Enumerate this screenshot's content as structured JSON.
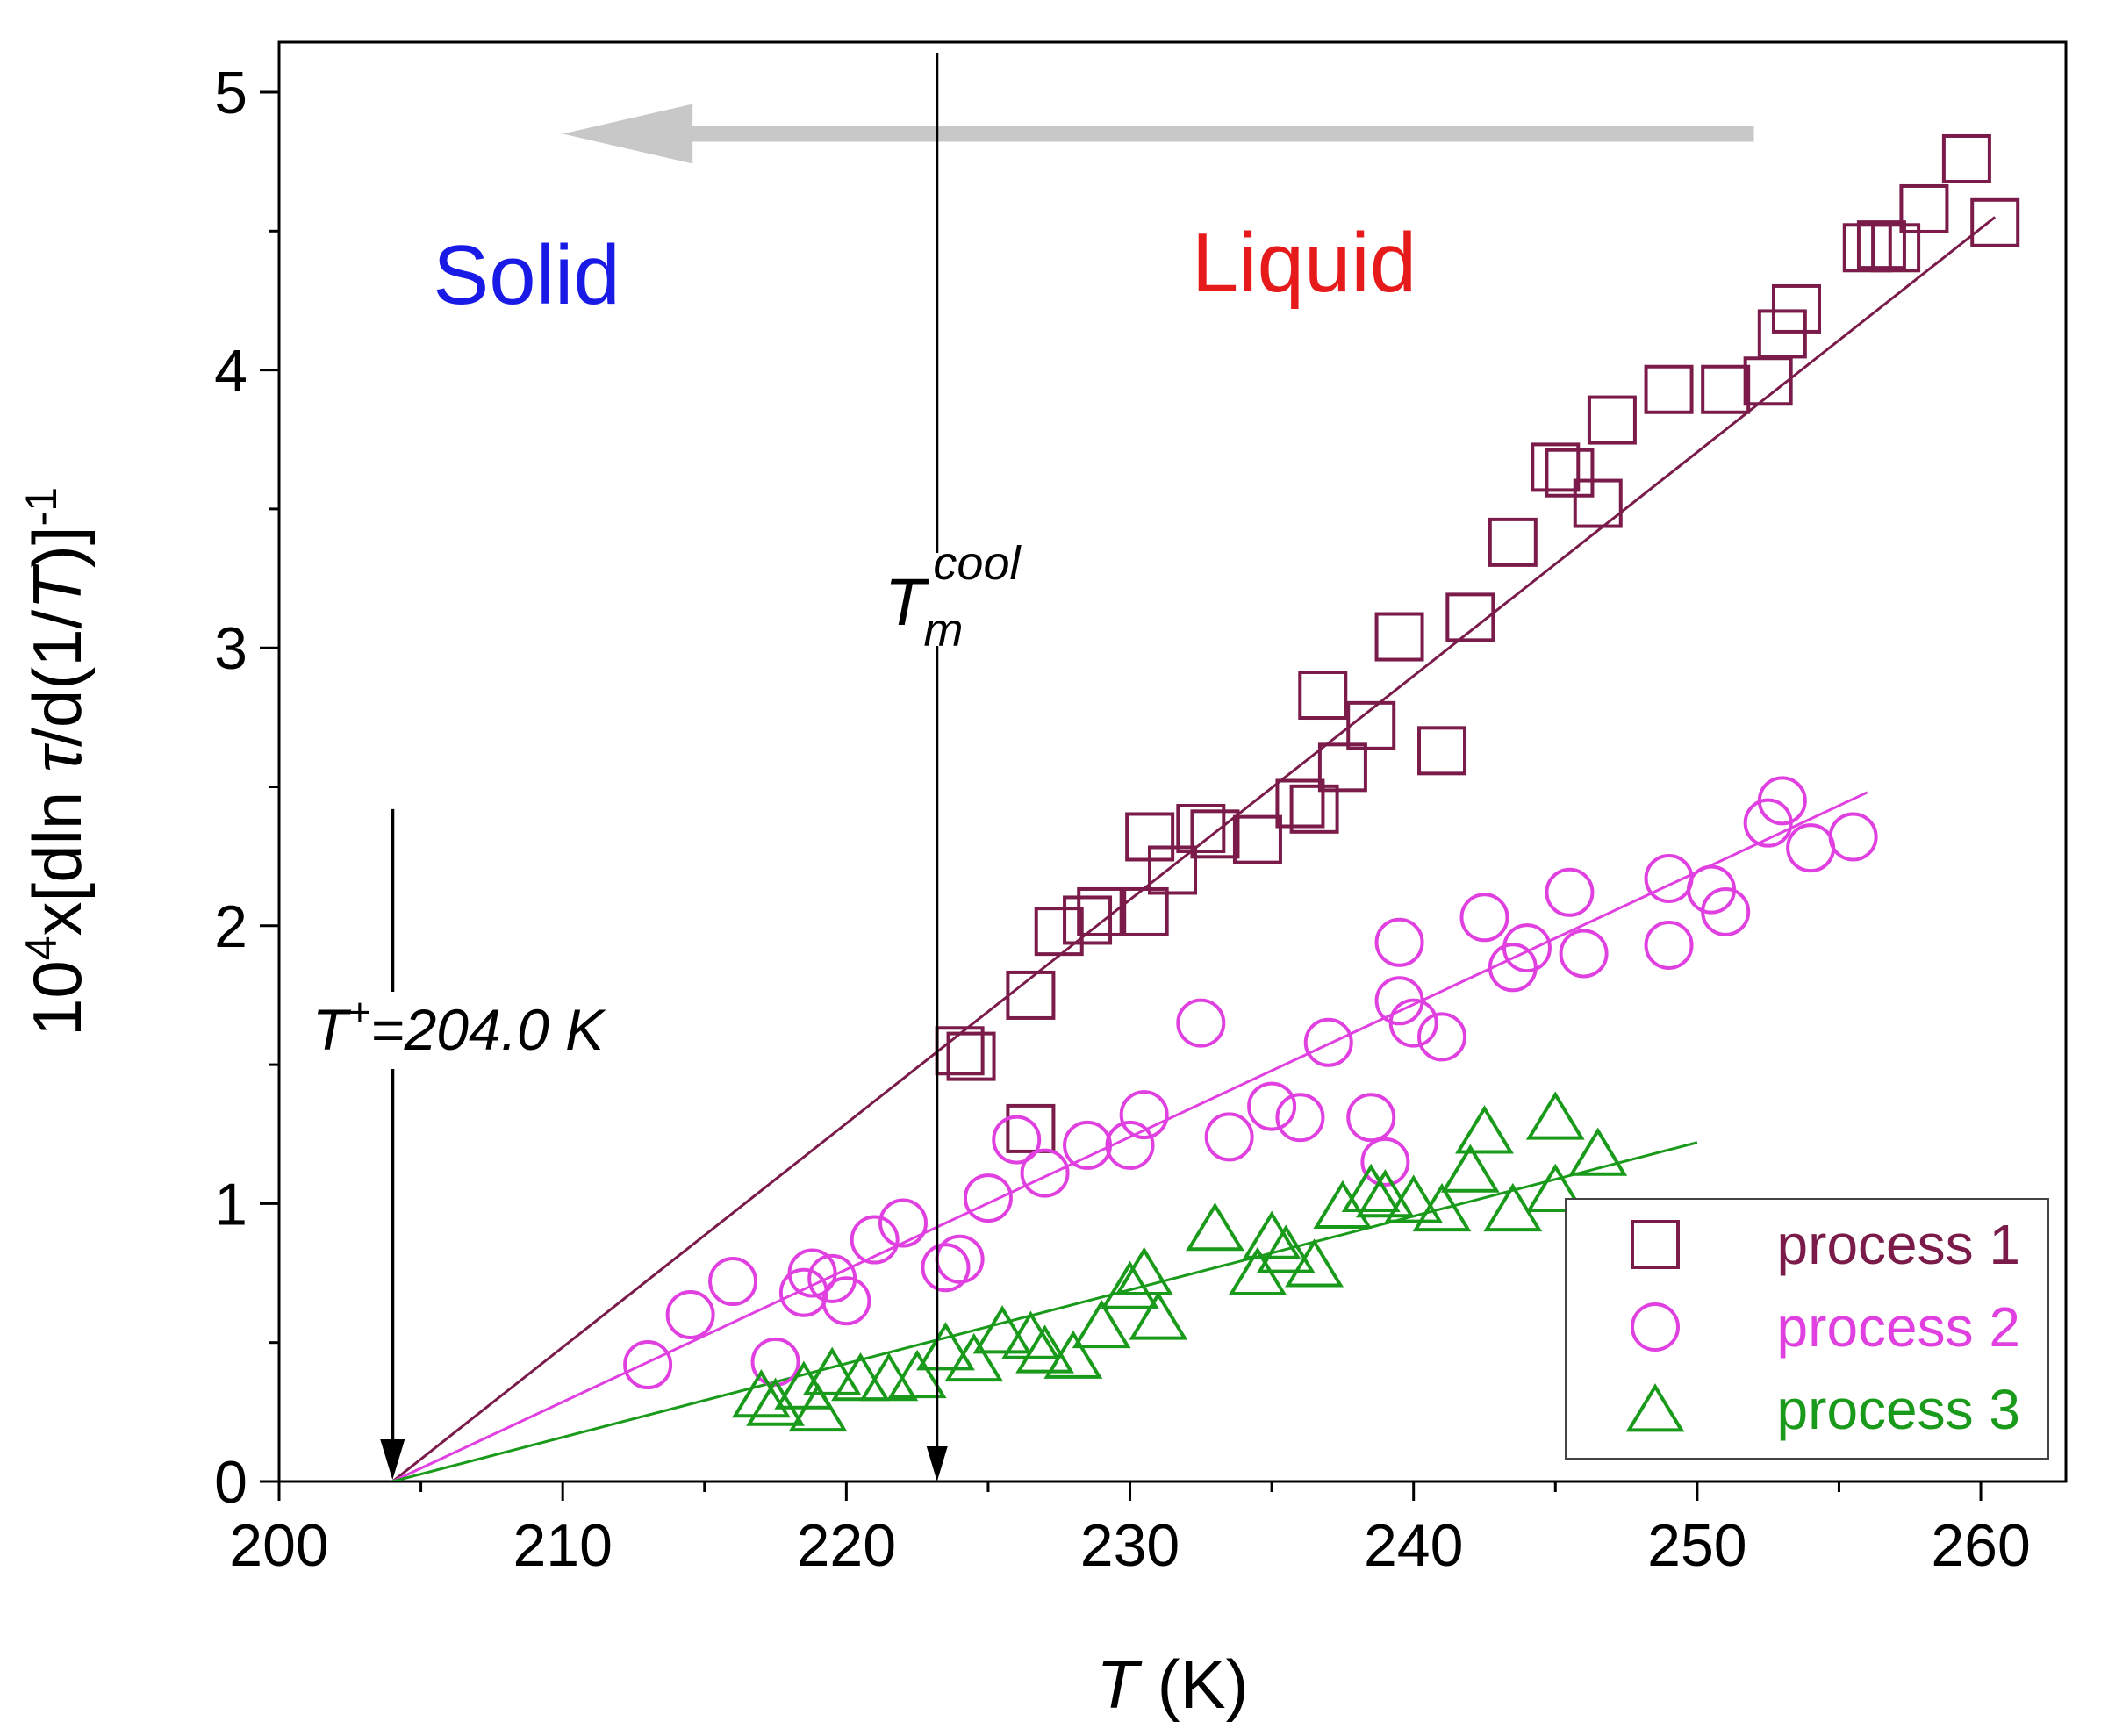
{
  "chart_data": {
    "type": "scatter",
    "xlabel": "T  (K)",
    "ylabel": "10⁴x[dln τ/d(1/T)]⁻¹",
    "xlim": [
      200,
      263
    ],
    "ylim": [
      0,
      5.18
    ],
    "xticks": [
      200,
      210,
      220,
      230,
      240,
      250,
      260
    ],
    "yticks": [
      0,
      1,
      2,
      3,
      4,
      5
    ],
    "grid": false,
    "legend_position": "bottom-right",
    "colors": {
      "process1": "#7a1b4a",
      "process2": "#e040e0",
      "process3": "#1a9a1a",
      "arrow": "#c8c8c8",
      "solid": "#1a1ae6",
      "liquid": "#e61a1a"
    },
    "regions": {
      "solid": "Solid",
      "liquid": "Liquid"
    },
    "arrow": {
      "from_x": 252,
      "to_x": 210,
      "y": 4.85
    },
    "tm_cool": {
      "label_main": "T",
      "label_sub": "m",
      "label_sup": "cool",
      "x": 223.2
    },
    "t_plus": {
      "label_main": "T",
      "label_sup": "+",
      "label_rest": "=204.0 K",
      "x": 204.0,
      "y_top": 2.42
    },
    "series": [
      {
        "name": "process 1",
        "marker": "square",
        "color": "#7a1b4a",
        "fit": {
          "x": [
            204.0,
            260.5
          ],
          "y": [
            0.0,
            4.55
          ]
        },
        "points": [
          [
            224.0,
            1.55
          ],
          [
            224.4,
            1.53
          ],
          [
            226.5,
            1.75
          ],
          [
            226.5,
            1.27
          ],
          [
            227.5,
            1.98
          ],
          [
            228.5,
            2.02
          ],
          [
            229.0,
            2.05
          ],
          [
            230.5,
            2.05
          ],
          [
            230.7,
            2.32
          ],
          [
            231.5,
            2.2
          ],
          [
            232.5,
            2.35
          ],
          [
            233.0,
            2.33
          ],
          [
            234.5,
            2.31
          ],
          [
            236.0,
            2.44
          ],
          [
            236.5,
            2.42
          ],
          [
            236.8,
            2.83
          ],
          [
            237.5,
            2.57
          ],
          [
            238.5,
            2.72
          ],
          [
            239.5,
            3.04
          ],
          [
            241.0,
            2.63
          ],
          [
            242.0,
            3.11
          ],
          [
            243.5,
            3.38
          ],
          [
            245.0,
            3.65
          ],
          [
            245.5,
            3.63
          ],
          [
            246.5,
            3.52
          ],
          [
            247.0,
            3.82
          ],
          [
            249.0,
            3.93
          ],
          [
            251.0,
            3.93
          ],
          [
            252.5,
            3.96
          ],
          [
            253.0,
            4.13
          ],
          [
            253.5,
            4.22
          ],
          [
            256.0,
            4.44
          ],
          [
            256.5,
            4.45
          ],
          [
            257.0,
            4.44
          ],
          [
            258.0,
            4.58
          ],
          [
            259.5,
            4.76
          ],
          [
            260.5,
            4.53
          ]
        ]
      },
      {
        "name": "process 2",
        "marker": "circle",
        "color": "#e040e0",
        "fit": {
          "x": [
            204.0,
            256.0
          ],
          "y": [
            0.0,
            2.48
          ]
        },
        "points": [
          [
            213.0,
            0.42
          ],
          [
            214.5,
            0.6
          ],
          [
            216.0,
            0.72
          ],
          [
            217.5,
            0.43
          ],
          [
            218.5,
            0.68
          ],
          [
            218.8,
            0.75
          ],
          [
            219.5,
            0.73
          ],
          [
            220.0,
            0.65
          ],
          [
            221.0,
            0.87
          ],
          [
            222.0,
            0.93
          ],
          [
            223.5,
            0.77
          ],
          [
            224.0,
            0.8
          ],
          [
            225.0,
            1.02
          ],
          [
            226.0,
            1.23
          ],
          [
            227.0,
            1.11
          ],
          [
            228.5,
            1.21
          ],
          [
            230.0,
            1.21
          ],
          [
            230.5,
            1.32
          ],
          [
            232.5,
            1.65
          ],
          [
            233.5,
            1.24
          ],
          [
            235.0,
            1.35
          ],
          [
            236.0,
            1.31
          ],
          [
            237.0,
            1.58
          ],
          [
            238.5,
            1.31
          ],
          [
            239.0,
            1.15
          ],
          [
            239.5,
            1.94
          ],
          [
            239.5,
            1.73
          ],
          [
            240.0,
            1.65
          ],
          [
            241.0,
            1.6
          ],
          [
            242.5,
            2.03
          ],
          [
            243.5,
            1.85
          ],
          [
            244.0,
            1.92
          ],
          [
            245.5,
            2.12
          ],
          [
            246.0,
            1.9
          ],
          [
            249.0,
            1.93
          ],
          [
            249.0,
            2.17
          ],
          [
            250.5,
            2.13
          ],
          [
            251.0,
            2.05
          ],
          [
            252.5,
            2.37
          ],
          [
            253.0,
            2.45
          ],
          [
            254.0,
            2.28
          ],
          [
            255.5,
            2.32
          ]
        ]
      },
      {
        "name": "process 3",
        "marker": "triangle",
        "color": "#1a9a1a",
        "fit": {
          "x": [
            204.0,
            250.0
          ],
          "y": [
            0.0,
            1.22
          ]
        },
        "points": [
          [
            217.0,
            0.31
          ],
          [
            217.5,
            0.28
          ],
          [
            218.5,
            0.34
          ],
          [
            219.0,
            0.26
          ],
          [
            219.5,
            0.39
          ],
          [
            220.5,
            0.37
          ],
          [
            221.5,
            0.37
          ],
          [
            222.5,
            0.38
          ],
          [
            223.5,
            0.48
          ],
          [
            224.5,
            0.44
          ],
          [
            225.5,
            0.54
          ],
          [
            226.5,
            0.52
          ],
          [
            227.0,
            0.47
          ],
          [
            228.0,
            0.45
          ],
          [
            229.0,
            0.56
          ],
          [
            230.0,
            0.7
          ],
          [
            230.5,
            0.75
          ],
          [
            231.0,
            0.59
          ],
          [
            233.0,
            0.91
          ],
          [
            234.5,
            0.75
          ],
          [
            235.0,
            0.88
          ],
          [
            235.5,
            0.83
          ],
          [
            236.5,
            0.78
          ],
          [
            237.5,
            0.99
          ],
          [
            238.5,
            1.05
          ],
          [
            239.0,
            1.03
          ],
          [
            240.0,
            1.01
          ],
          [
            241.0,
            0.98
          ],
          [
            242.5,
            1.26
          ],
          [
            242.0,
            1.12
          ],
          [
            243.5,
            0.98
          ],
          [
            245.0,
            1.31
          ],
          [
            245.0,
            1.05
          ],
          [
            246.5,
            1.18
          ]
        ]
      }
    ]
  }
}
